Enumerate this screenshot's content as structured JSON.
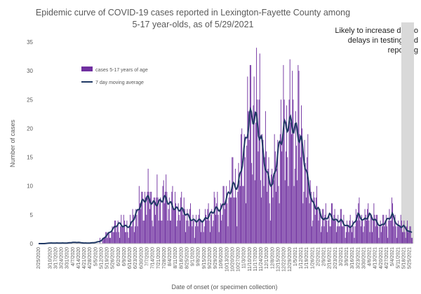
{
  "chart_data": {
    "type": "bar",
    "title": "Epidemic curve of COVID-19 cases reported in Lexington-Fayette County among 5-17 year-olds, as of 5/29/2021",
    "xlabel": "Date of onset (or specimen collection)",
    "ylabel": "Number of cases",
    "ylim": [
      0,
      35
    ],
    "yticks": [
      0,
      5,
      10,
      15,
      20,
      25,
      30,
      35
    ],
    "x_start": "2/25/2020",
    "x_end": "5/28/2021",
    "xticks": [
      "2/25/2020",
      "3/10/2020",
      "3/17/2020",
      "3/24/2020",
      "3/31/2020",
      "4/7/2020",
      "4/14/2020",
      "4/21/2020",
      "4/28/2020",
      "5/5/2020",
      "5/12/2020",
      "5/19/2020",
      "5/26/2020",
      "6/2/2020",
      "6/9/2020",
      "6/16/2020",
      "6/23/2020",
      "6/30/2020",
      "7/7/2020",
      "7/14/2020",
      "7/21/2020",
      "7/28/2020",
      "8/4/2020",
      "8/11/2020",
      "8/18/2020",
      "8/25/2020",
      "9/1/2020",
      "9/8/2020",
      "9/15/2020",
      "9/22/2020",
      "9/29/2020",
      "10/6/2020",
      "10/13/2020",
      "10/20/2020",
      "10/27/2020",
      "11/3/2020",
      "11/10/2020",
      "11/17/2020",
      "11/24/2020",
      "12/1/2020",
      "12/8/2020",
      "12/15/2020",
      "12/22/2020",
      "12/29/2020",
      "1/5/2021",
      "1/12/2021",
      "1/19/2021",
      "1/26/2021",
      "2/2/2021",
      "2/9/2021",
      "2/16/2021",
      "2/23/2021",
      "3/2/2021",
      "3/9/2021",
      "3/16/2021",
      "3/23/2021",
      "3/30/2021",
      "4/6/2021",
      "4/13/2021",
      "4/20/2021",
      "4/27/2021",
      "5/4/2021",
      "5/11/2021",
      "5/18/2021",
      "5/25/2021"
    ],
    "grid": false,
    "legend_position": "top-left",
    "series": [
      {
        "name": "cases 5-17 years of age",
        "kind": "bar",
        "color": "#7030A0",
        "weekly_daily_average": [
          0,
          0,
          0.1,
          0.1,
          0.1,
          0.1,
          0.2,
          0.2,
          0.1,
          0.1,
          0.2,
          0.5,
          1.5,
          2.5,
          3.5,
          3,
          3,
          5,
          7,
          8,
          7,
          7,
          8,
          7,
          6,
          6,
          5,
          4,
          4,
          4,
          5,
          6,
          6,
          8,
          10,
          10,
          16,
          22,
          22,
          18,
          12,
          10,
          16,
          20,
          21,
          20,
          18,
          12,
          7,
          6,
          4,
          5,
          4,
          4,
          3,
          3,
          5,
          4,
          5,
          4,
          3,
          4,
          5,
          3,
          3,
          2
        ],
        "notable_peaks": [
          {
            "date": "11/22/2020",
            "value": 33
          },
          {
            "date": "1/8/2021",
            "value": 31
          },
          {
            "date": "11/15/2020",
            "value": 29
          }
        ]
      },
      {
        "name": "7 day moving average",
        "kind": "line",
        "color": "#1F3864",
        "weekly_values": [
          0,
          0,
          0.1,
          0.1,
          0.1,
          0.1,
          0.2,
          0.2,
          0.1,
          0.1,
          0.2,
          0.5,
          1.5,
          2.5,
          3.5,
          3,
          3,
          5,
          7,
          8,
          7,
          7,
          8,
          7,
          6,
          6,
          5,
          4,
          4,
          4,
          5,
          6,
          6,
          8,
          10,
          10,
          16,
          22,
          22,
          18,
          12,
          10,
          16,
          20,
          21,
          20,
          18,
          12,
          7,
          6,
          4,
          5,
          4,
          4,
          3,
          3,
          5,
          4,
          5,
          4,
          3,
          4,
          5,
          3,
          3,
          2
        ]
      }
    ],
    "shaded_region": {
      "start": "5/15/2021",
      "end": "5/28/2021",
      "color": "#d9d9d9"
    },
    "annotation": "Likely to increase due to delays in testing and reporting"
  }
}
